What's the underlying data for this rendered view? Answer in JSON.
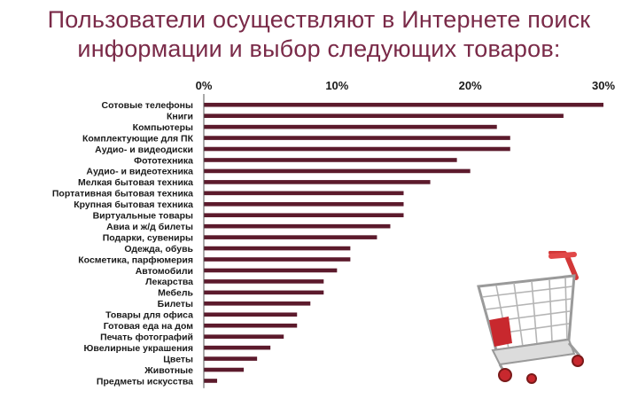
{
  "title_lines": [
    "Пользователи осуществляют в Интернете поиск",
    "информации и выбор следующих товаров:"
  ],
  "chart_data": {
    "type": "bar",
    "orientation": "horizontal",
    "categories": [
      "Сотовые телефоны",
      "Книги",
      "Компьютеры",
      "Комплектующие для ПК",
      "Аудио- и видеодиски",
      "Фототехника",
      "Аудио- и видеотехника",
      "Мелкая бытовая техника",
      "Портативная бытовая техника",
      "Крупная бытовая техника",
      "Виртуальные товары",
      "Авиа и ж/д билеты",
      "Подарки, сувениры",
      "Одежда, обувь",
      "Косметика, парфюмерия",
      "Автомобили",
      "Лекарства",
      "Мебель",
      "Билеты",
      "Товары для офиса",
      "Готовая еда на дом",
      "Печать фотографий",
      "Ювелирные украшения",
      "Цветы",
      "Животные",
      "Предметы искусства"
    ],
    "values": [
      30,
      27,
      22,
      23,
      23,
      19,
      20,
      17,
      15,
      15,
      15,
      14,
      13,
      11,
      11,
      10,
      9,
      9,
      8,
      7,
      7,
      6,
      5,
      4,
      3,
      1
    ],
    "xlim": [
      0,
      30
    ],
    "xticks": [
      "0%",
      "10%",
      "20%",
      "30%"
    ],
    "xtick_values": [
      0,
      10,
      20,
      30
    ],
    "bar_color": "#5c1a2c",
    "title_color": "#7a2a48",
    "grid": false,
    "legend": "none"
  }
}
